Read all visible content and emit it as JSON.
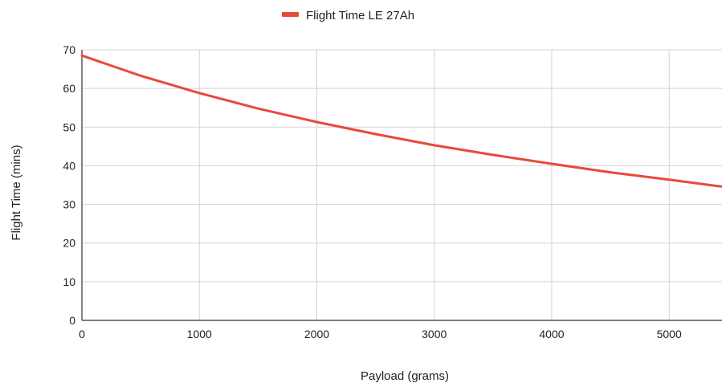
{
  "chart_data": {
    "type": "line",
    "title": "",
    "xlabel": "Payload (grams)",
    "ylabel": "Flight Time (mins)",
    "xlim": [
      0,
      5450
    ],
    "ylim": [
      0,
      70
    ],
    "x_ticks": [
      "0",
      "1000",
      "2000",
      "3000",
      "4000",
      "5000"
    ],
    "y_ticks": [
      "0",
      "10",
      "20",
      "30",
      "40",
      "50",
      "60",
      "70"
    ],
    "grid": true,
    "legend_position": "top",
    "series": [
      {
        "name": "Flight Time LE 27Ah",
        "color": "#e8493b",
        "x": [
          0,
          500,
          1000,
          1500,
          2000,
          2500,
          3000,
          3500,
          4000,
          4500,
          5000,
          5450
        ],
        "y": [
          68.5,
          63.3,
          58.8,
          54.8,
          51.3,
          48.2,
          45.3,
          42.8,
          40.5,
          38.3,
          36.4,
          34.6
        ]
      }
    ]
  }
}
